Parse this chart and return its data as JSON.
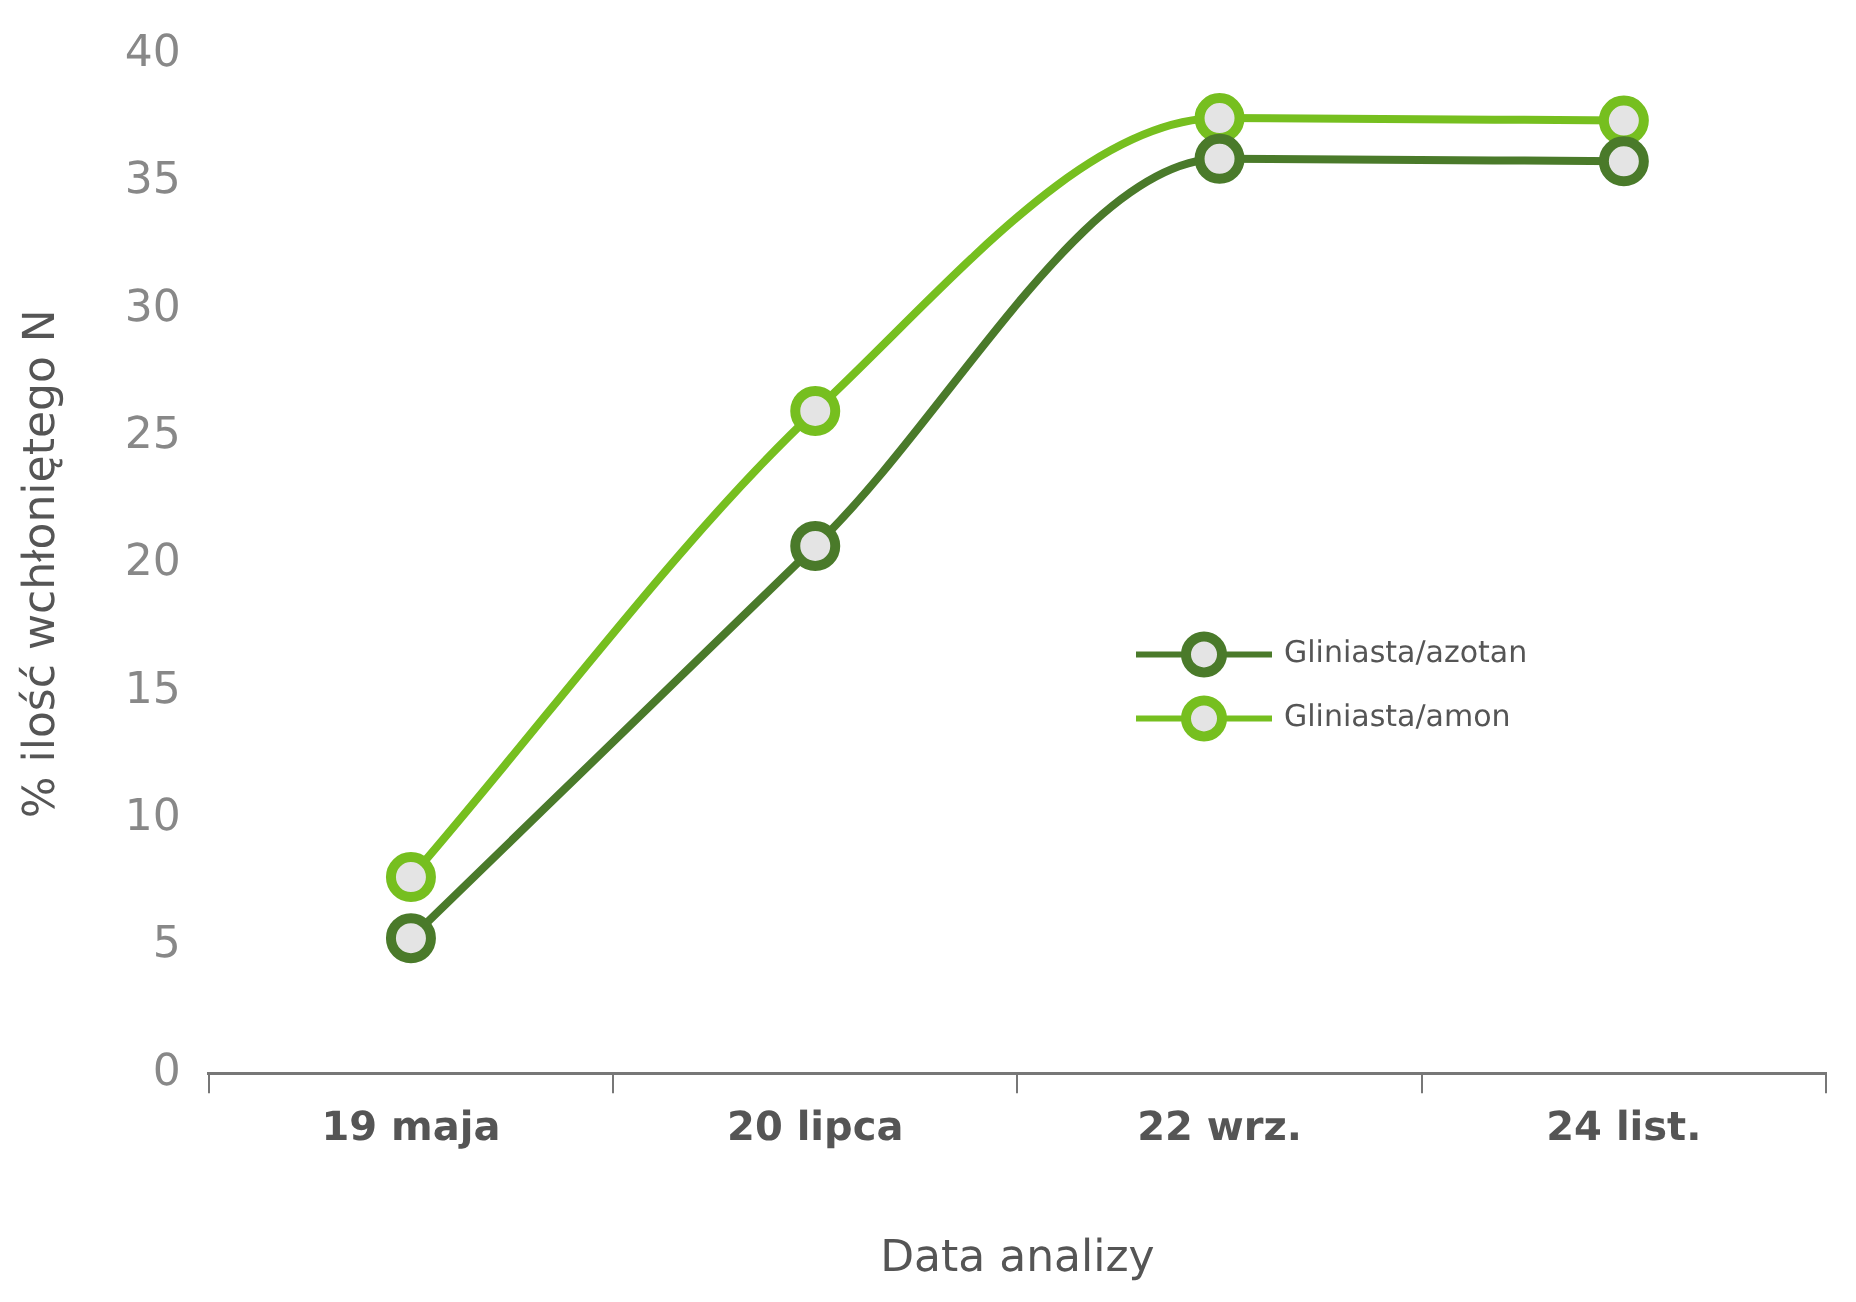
{
  "chart_data": {
    "type": "line",
    "xlabel": "Data analizy",
    "ylabel": "% ilość wchłoniętego N",
    "categories": [
      "19 maja",
      "20 lipca",
      "22 wrz.",
      "24 list."
    ],
    "series": [
      {
        "name": "Gliniasta/azotan",
        "color": "#4a7a2a",
        "values": [
          5.3,
          20.7,
          35.9,
          35.8
        ]
      },
      {
        "name": "Gliniasta/amon",
        "color": "#76bf1f",
        "values": [
          7.7,
          26.0,
          37.5,
          37.4
        ]
      }
    ],
    "ylim": [
      0,
      40
    ],
    "yticks": [
      0,
      5,
      10,
      15,
      20,
      25,
      30,
      35,
      40
    ],
    "grid": false,
    "legend": "right",
    "marker": "circle",
    "line_style": "solid"
  }
}
